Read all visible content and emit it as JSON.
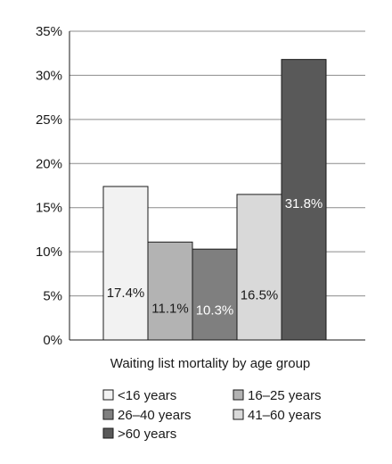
{
  "chart_data": {
    "type": "bar",
    "categories": [
      "<16 years",
      "16–25 years",
      "26–40 years",
      "41–60 years",
      ">60 years"
    ],
    "values": [
      17.4,
      11.1,
      10.3,
      16.5,
      31.8
    ],
    "data_labels": [
      "17.4%",
      "11.1%",
      "10.3%",
      "16.5%",
      "31.8%"
    ],
    "colors": [
      "#f2f2f2",
      "#b3b3b3",
      "#7f7f7f",
      "#d9d9d9",
      "#595959"
    ],
    "label_colors": [
      "#1a1a1a",
      "#1a1a1a",
      "#ffffff",
      "#1a1a1a",
      "#ffffff"
    ],
    "xlabel": "Waiting list mortality by age group",
    "ylabel": "",
    "ylim": [
      0,
      35
    ],
    "yticks": [
      0,
      5,
      10,
      15,
      20,
      25,
      30,
      35
    ],
    "ytick_labels": [
      "0%",
      "5%",
      "10%",
      "15%",
      "20%",
      "25%",
      "30%",
      "35%"
    ],
    "grid": true,
    "legend": {
      "placement": "bottom",
      "entries": [
        "<16 years",
        "16–25 years",
        "26–40 years",
        "41–60 years",
        ">60 years"
      ]
    }
  }
}
